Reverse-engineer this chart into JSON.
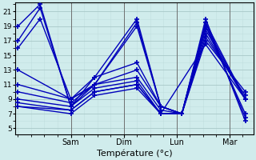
{
  "background_color": "#d0ecec",
  "plot_background": "#d0ecec",
  "grid_color_major": "#a8c8c8",
  "grid_color_minor": "#c0dede",
  "line_color": "#0000bb",
  "linewidth": 1.0,
  "markersize": 4,
  "markeredgewidth": 1.2,
  "xlabel": "Température (°c)",
  "xlabel_fontsize": 8,
  "yticks": [
    5,
    7,
    9,
    11,
    13,
    15,
    17,
    19,
    21
  ],
  "ytick_fontsize": 6.5,
  "xtick_labels": [
    "Sam",
    "Dim",
    "Lun",
    "Mar"
  ],
  "xtick_fontsize": 7,
  "ylim": [
    4.2,
    22.2
  ],
  "xlim": [
    -0.05,
    4.45
  ],
  "day_positions": [
    1,
    2,
    3,
    4
  ],
  "series": [
    {
      "x": [
        0.0,
        0.42,
        1.0,
        1.45,
        2.25,
        2.7,
        3.1,
        3.55,
        4.3
      ],
      "y": [
        19,
        22,
        8,
        12,
        20,
        8,
        7,
        20,
        6
      ]
    },
    {
      "x": [
        0.0,
        0.42,
        1.0,
        1.45,
        2.25,
        2.7,
        3.1,
        3.55,
        4.3
      ],
      "y": [
        17,
        21.5,
        8,
        11,
        19.5,
        8,
        7,
        19.5,
        6.5
      ]
    },
    {
      "x": [
        0.0,
        0.42,
        1.0,
        1.45,
        2.25,
        2.7,
        3.1,
        3.55,
        4.3
      ],
      "y": [
        16,
        20,
        9,
        11,
        19,
        8,
        7,
        19,
        7
      ]
    },
    {
      "x": [
        0.0,
        1.0,
        1.45,
        2.25,
        2.7,
        3.1,
        3.55,
        4.3
      ],
      "y": [
        13,
        9,
        12,
        14,
        8,
        7,
        19.5,
        9
      ]
    },
    {
      "x": [
        0.0,
        1.0,
        1.45,
        2.25,
        2.7,
        3.1,
        3.55,
        4.3
      ],
      "y": [
        11,
        9,
        11,
        13,
        8,
        7,
        19,
        9
      ]
    },
    {
      "x": [
        0.0,
        1.0,
        1.45,
        2.25,
        2.7,
        3.1,
        3.55,
        4.3
      ],
      "y": [
        10,
        8.5,
        11,
        12,
        7.5,
        7,
        18.5,
        9
      ]
    },
    {
      "x": [
        0.0,
        1.0,
        1.45,
        2.25,
        2.7,
        3.1,
        3.55,
        4.3
      ],
      "y": [
        9,
        8,
        10.5,
        11.5,
        7,
        7,
        18,
        9
      ]
    },
    {
      "x": [
        0.0,
        1.0,
        1.45,
        2.25,
        2.7,
        3.1,
        3.55,
        4.3
      ],
      "y": [
        8.5,
        7.5,
        10,
        11,
        7,
        7,
        17.5,
        9.5
      ]
    },
    {
      "x": [
        0.0,
        1.0,
        1.45,
        2.25,
        2.7,
        3.1,
        3.55,
        4.3
      ],
      "y": [
        8,
        7.5,
        10,
        11,
        7,
        7,
        17,
        10
      ]
    },
    {
      "x": [
        0.0,
        1.0,
        1.45,
        2.25,
        2.7,
        3.55,
        4.3
      ],
      "y": [
        8,
        7,
        9.5,
        10.5,
        7,
        16.5,
        9
      ]
    }
  ]
}
